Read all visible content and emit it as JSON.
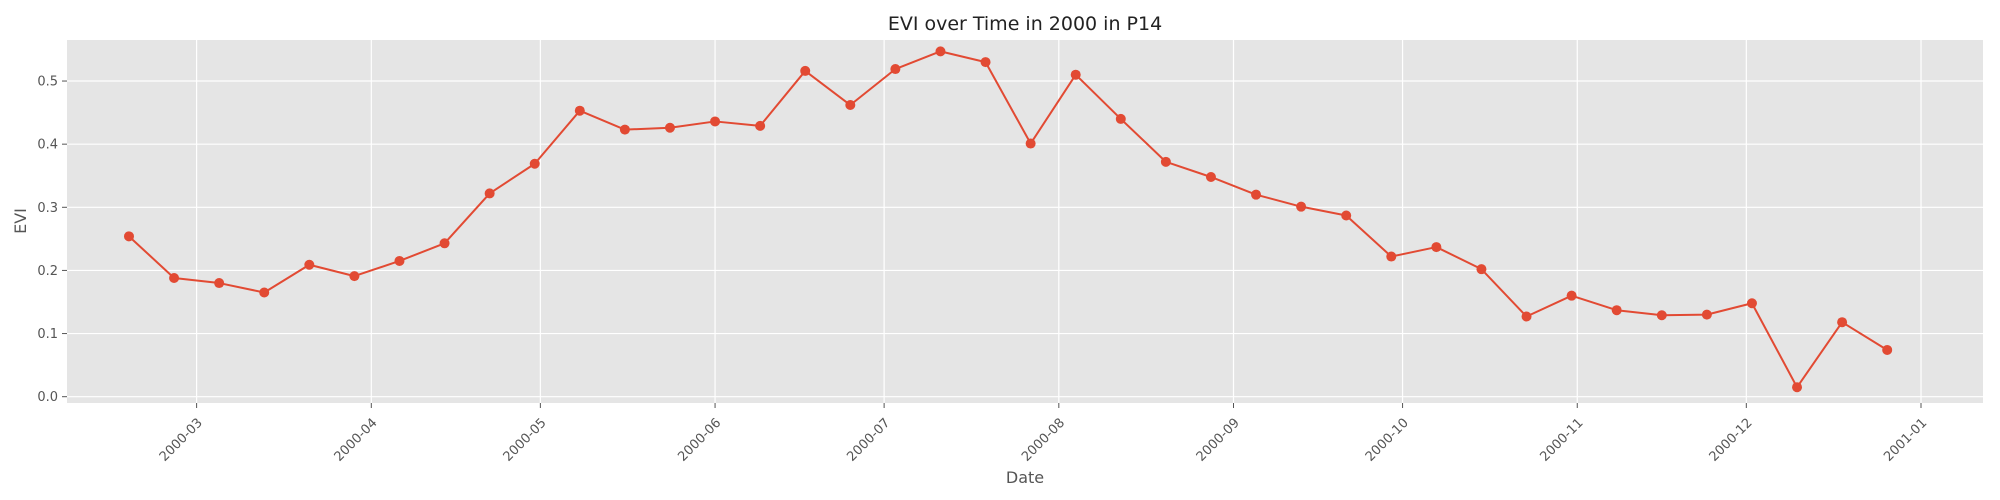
{
  "chart_data": {
    "type": "line",
    "title": "EVI over Time in 2000 in P14",
    "xlabel": "Date",
    "ylabel": "EVI",
    "x_axis_type": "date",
    "xlim": [
      "2000-02-07",
      "2001-01-12"
    ],
    "ylim": [
      -0.01,
      0.565
    ],
    "x_ticks": [
      "2000-03",
      "2000-04",
      "2000-05",
      "2000-06",
      "2000-07",
      "2000-08",
      "2000-09",
      "2000-10",
      "2000-11",
      "2000-12",
      "2001-01"
    ],
    "x_tick_dates": [
      "2000-03-01",
      "2000-04-01",
      "2000-05-01",
      "2000-06-01",
      "2000-07-01",
      "2000-08-01",
      "2000-09-01",
      "2000-10-01",
      "2000-11-01",
      "2000-12-01",
      "2001-01-01"
    ],
    "y_ticks": [
      "0.0",
      "0.1",
      "0.2",
      "0.3",
      "0.4",
      "0.5"
    ],
    "y_tick_values": [
      0.0,
      0.1,
      0.2,
      0.3,
      0.4,
      0.5
    ],
    "grid": true,
    "background": "#e5e5e5",
    "series": [
      {
        "color": "#e24a33",
        "marker": "circle",
        "x": [
          "2000-02-18",
          "2000-02-26",
          "2000-03-05",
          "2000-03-13",
          "2000-03-21",
          "2000-03-29",
          "2000-04-06",
          "2000-04-14",
          "2000-04-22",
          "2000-04-30",
          "2000-05-08",
          "2000-05-16",
          "2000-05-24",
          "2000-06-01",
          "2000-06-09",
          "2000-06-17",
          "2000-06-25",
          "2000-07-03",
          "2000-07-11",
          "2000-07-19",
          "2000-07-27",
          "2000-08-04",
          "2000-08-12",
          "2000-08-20",
          "2000-08-28",
          "2000-09-05",
          "2000-09-13",
          "2000-09-21",
          "2000-09-29",
          "2000-10-07",
          "2000-10-15",
          "2000-10-23",
          "2000-10-31",
          "2000-11-08",
          "2000-11-16",
          "2000-11-24",
          "2000-12-02",
          "2000-12-10",
          "2000-12-18",
          "2000-12-26"
        ],
        "values": [
          0.254,
          0.188,
          0.18,
          0.165,
          0.209,
          0.191,
          0.215,
          0.243,
          0.322,
          0.369,
          0.453,
          0.423,
          0.426,
          0.436,
          0.429,
          0.516,
          0.462,
          0.519,
          0.547,
          0.53,
          0.401,
          0.51,
          0.44,
          0.372,
          0.348,
          0.32,
          0.301,
          0.287,
          0.222,
          0.237,
          0.202,
          0.127,
          0.16,
          0.137,
          0.129,
          0.13,
          0.148,
          0.015,
          0.118,
          0.074
        ]
      }
    ]
  }
}
